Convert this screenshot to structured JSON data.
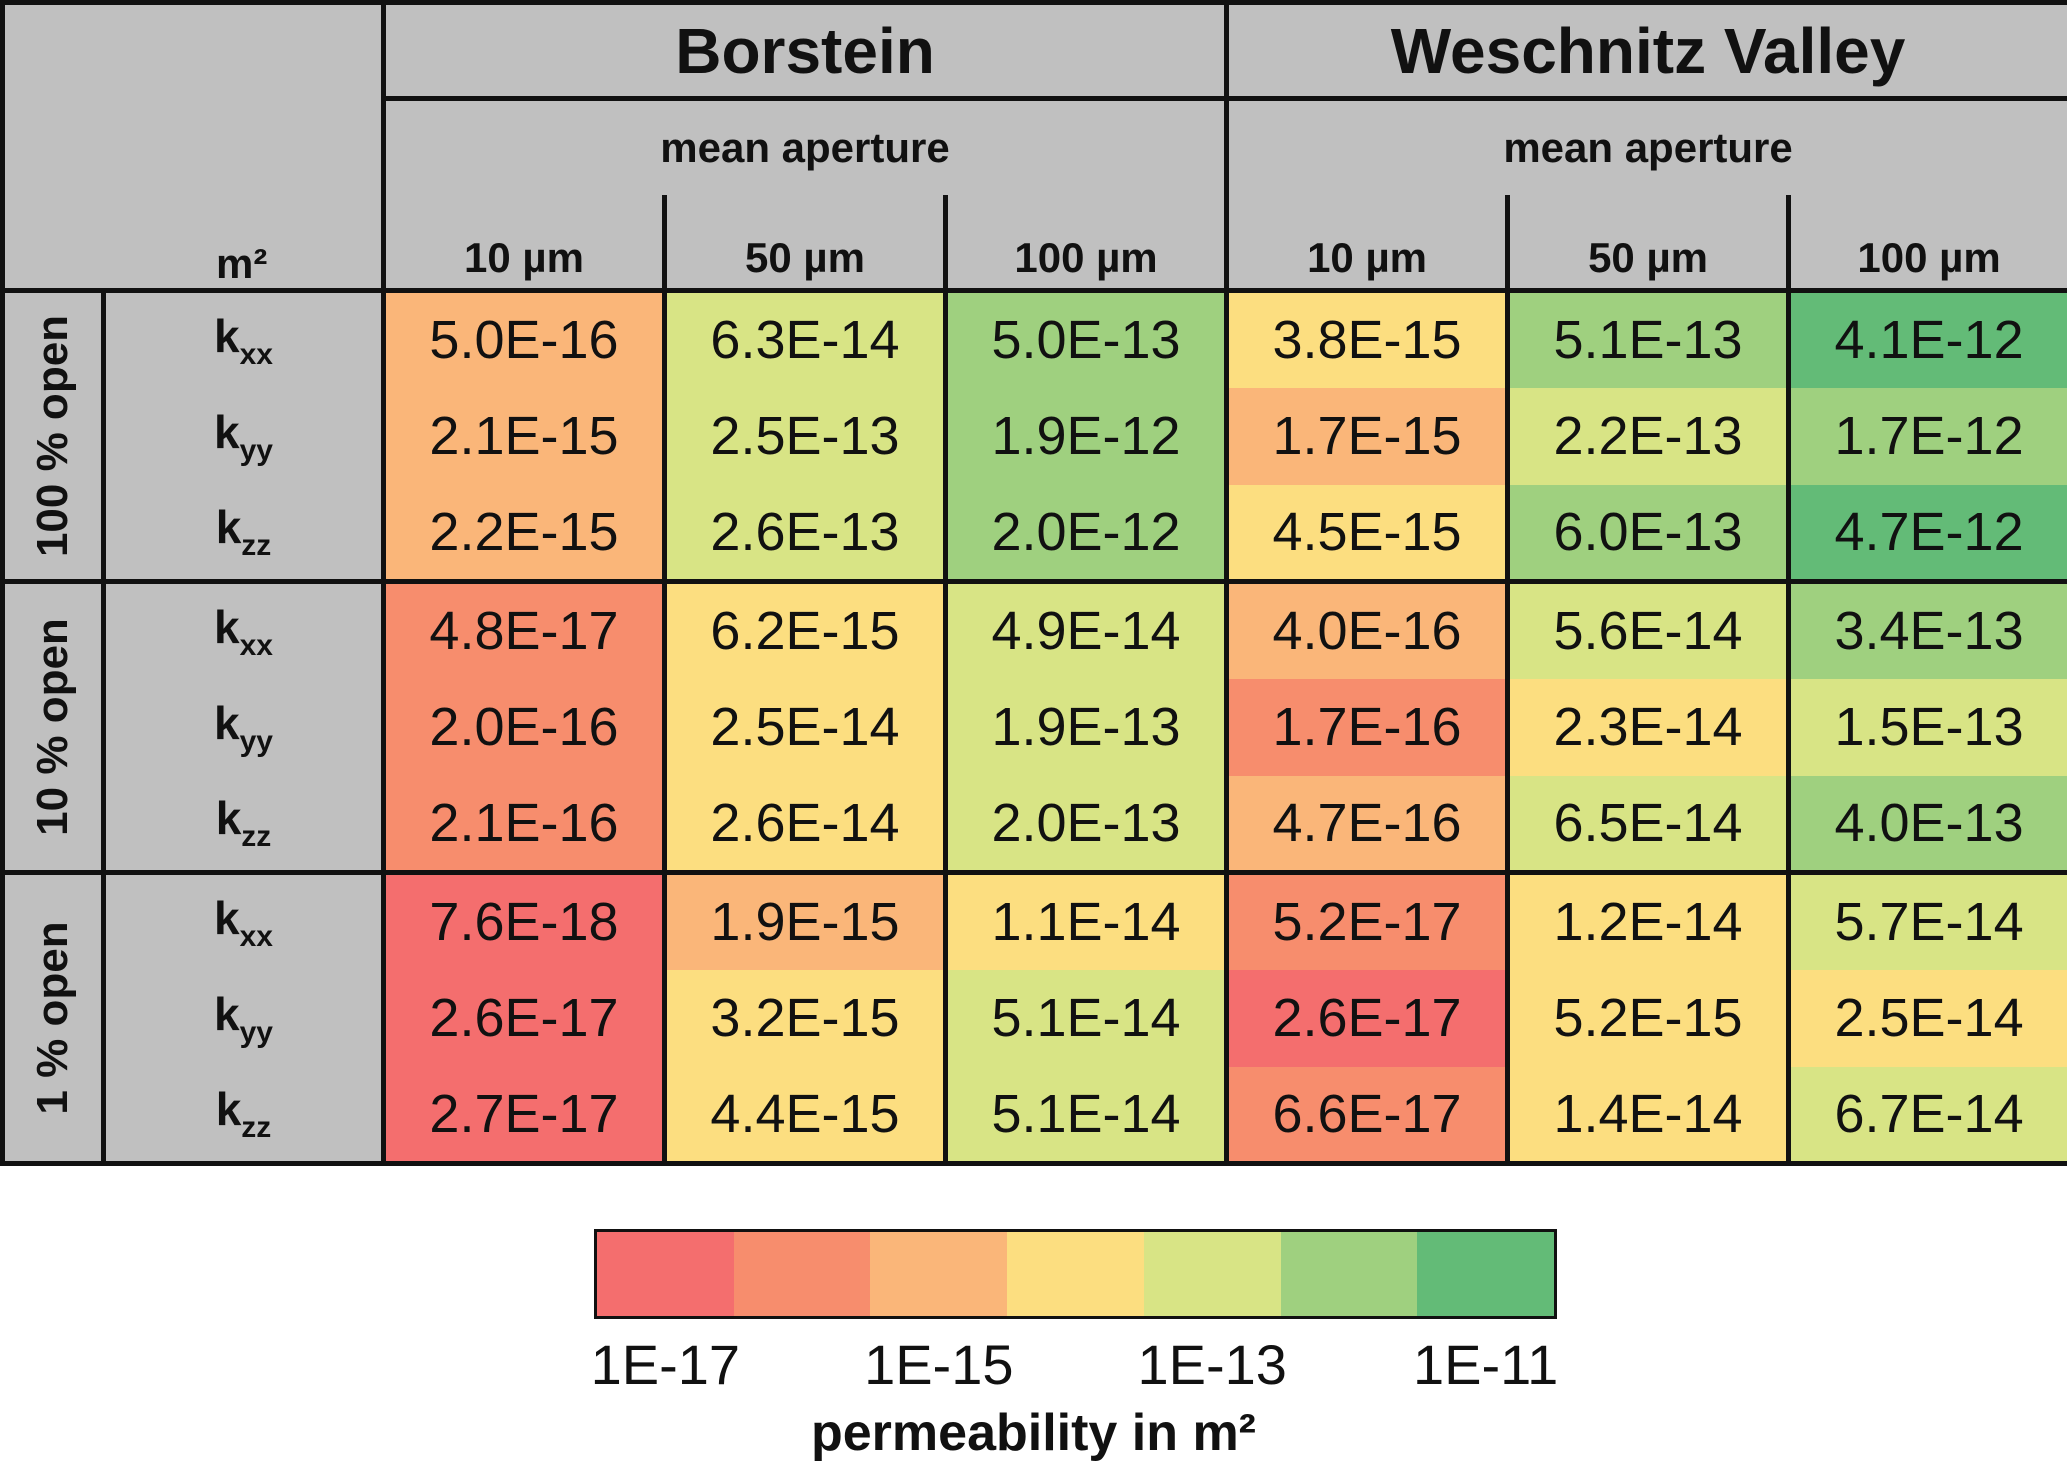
{
  "unit_label": "m²",
  "sites": [
    "Borstein",
    "Weschnitz Valley"
  ],
  "aperture_title": "mean aperture",
  "apertures": [
    "10 µm",
    "50 µm",
    "100 µm"
  ],
  "cases": [
    "100 % open",
    "10 % open",
    "1 % open"
  ],
  "components": [
    {
      "base": "k",
      "sub": "xx"
    },
    {
      "base": "k",
      "sub": "yy"
    },
    {
      "base": "k",
      "sub": "zz"
    }
  ],
  "rows": [
    [
      "5.0E-16",
      "6.3E-14",
      "5.0E-13",
      "3.8E-15",
      "5.1E-13",
      "4.1E-12"
    ],
    [
      "2.1E-15",
      "2.5E-13",
      "1.9E-12",
      "1.7E-15",
      "2.2E-13",
      "1.7E-12"
    ],
    [
      "2.2E-15",
      "2.6E-13",
      "2.0E-12",
      "4.5E-15",
      "6.0E-13",
      "4.7E-12"
    ],
    [
      "4.8E-17",
      "6.2E-15",
      "4.9E-14",
      "4.0E-16",
      "5.6E-14",
      "3.4E-13"
    ],
    [
      "2.0E-16",
      "2.5E-14",
      "1.9E-13",
      "1.7E-16",
      "2.3E-14",
      "1.5E-13"
    ],
    [
      "2.1E-16",
      "2.6E-14",
      "2.0E-13",
      "4.7E-16",
      "6.5E-14",
      "4.0E-13"
    ],
    [
      "7.6E-18",
      "1.9E-15",
      "1.1E-14",
      "5.2E-17",
      "1.2E-14",
      "5.7E-14"
    ],
    [
      "2.6E-17",
      "3.2E-15",
      "5.1E-14",
      "2.6E-17",
      "5.2E-15",
      "2.5E-14"
    ],
    [
      "2.7E-17",
      "4.4E-15",
      "5.1E-14",
      "6.6E-17",
      "1.4E-14",
      "6.7E-14"
    ]
  ],
  "legend": {
    "title": "permeability in m²",
    "tick_labels": [
      "1E-17",
      "1E-15",
      "1E-13",
      "1E-11"
    ],
    "tick_values": [
      -17,
      -15,
      -13,
      -11
    ],
    "range_log10": [
      -17.5,
      -10.5
    ],
    "colors": [
      "#f46e6e",
      "#f78d6d",
      "#fab679",
      "#fcde80",
      "#d8e485",
      "#9fd07f",
      "#63bb77"
    ]
  },
  "chart_data": {
    "type": "heatmap",
    "title": "",
    "colorbar_label": "permeability in m²",
    "colorbar_scale": "log10",
    "colorbar_range": [
      1e-17,
      1e-11
    ],
    "column_groups": [
      {
        "name": "Borstein",
        "columns": [
          "10 µm",
          "50 µm",
          "100 µm"
        ]
      },
      {
        "name": "Weschnitz Valley",
        "columns": [
          "10 µm",
          "50 µm",
          "100 µm"
        ]
      }
    ],
    "row_groups": [
      {
        "name": "100 % open",
        "rows": [
          "kxx",
          "kyy",
          "kzz"
        ]
      },
      {
        "name": "10 % open",
        "rows": [
          "kxx",
          "kyy",
          "kzz"
        ]
      },
      {
        "name": "1 % open",
        "rows": [
          "kxx",
          "kyy",
          "kzz"
        ]
      }
    ]
  }
}
